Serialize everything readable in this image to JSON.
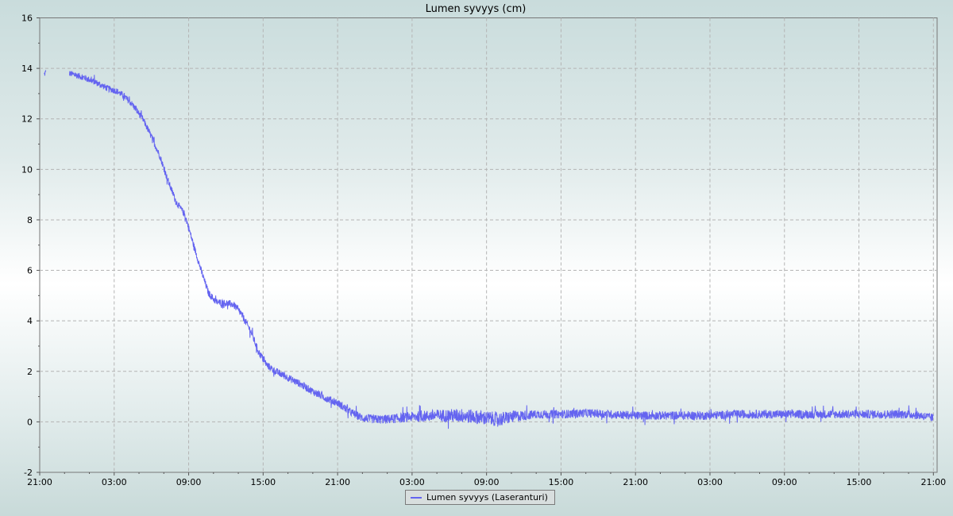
{
  "chart_data": {
    "type": "line",
    "title": "Lumen syvyys (cm)",
    "xlabel": "",
    "ylabel": "",
    "ylim": [
      -2,
      16
    ],
    "y_ticks": [
      -2,
      0,
      2,
      4,
      6,
      8,
      10,
      12,
      14,
      16
    ],
    "x_range_hours": [
      0,
      72.3
    ],
    "x_ticks": [
      {
        "h": 0,
        "label": "21:00"
      },
      {
        "h": 6,
        "label": "03:00"
      },
      {
        "h": 12,
        "label": "09:00"
      },
      {
        "h": 18,
        "label": "15:00"
      },
      {
        "h": 24,
        "label": "21:00"
      },
      {
        "h": 30,
        "label": "03:00"
      },
      {
        "h": 36,
        "label": "09:00"
      },
      {
        "h": 42,
        "label": "15:00"
      },
      {
        "h": 48,
        "label": "21:00"
      },
      {
        "h": 54,
        "label": "03:00"
      },
      {
        "h": 60,
        "label": "09:00"
      },
      {
        "h": 66,
        "label": "15:00"
      },
      {
        "h": 72,
        "label": "21:00"
      }
    ],
    "grid": true,
    "legend_position": "bottom-center",
    "series": [
      {
        "name": "Lumen syvyys (Laseranturi)",
        "color": "#6464f0",
        "segments": [
          [
            [
              0.35,
              13.75
            ],
            [
              0.5,
              13.85
            ]
          ],
          [
            [
              2.4,
              13.8
            ],
            [
              3.5,
              13.65
            ],
            [
              4.5,
              13.45
            ],
            [
              5.5,
              13.2
            ],
            [
              6.2,
              13.1
            ],
            [
              6.8,
              12.9
            ],
            [
              7.5,
              12.55
            ],
            [
              8.3,
              12.0
            ],
            [
              9.0,
              11.3
            ],
            [
              9.7,
              10.5
            ],
            [
              10.3,
              9.6
            ],
            [
              11.0,
              8.7
            ],
            [
              11.7,
              8.2
            ],
            [
              12.4,
              7.0
            ],
            [
              13.0,
              6.0
            ],
            [
              13.6,
              5.1
            ],
            [
              14.2,
              4.75
            ],
            [
              15.0,
              4.7
            ],
            [
              15.6,
              4.65
            ],
            [
              16.2,
              4.3
            ],
            [
              17.0,
              3.6
            ],
            [
              17.6,
              2.8
            ],
            [
              18.3,
              2.25
            ],
            [
              19.0,
              2.0
            ],
            [
              20.0,
              1.75
            ],
            [
              21.0,
              1.5
            ],
            [
              22.0,
              1.2
            ],
            [
              23.0,
              0.95
            ],
            [
              24.0,
              0.75
            ],
            [
              25.0,
              0.4
            ],
            [
              26.0,
              0.15
            ],
            [
              27.0,
              0.1
            ],
            [
              28.0,
              0.1
            ],
            [
              29.0,
              0.15
            ],
            [
              30.0,
              0.2
            ],
            [
              32.0,
              0.25
            ],
            [
              34.0,
              0.25
            ],
            [
              36.0,
              0.15
            ],
            [
              37.0,
              0.1
            ],
            [
              38.0,
              0.2
            ],
            [
              40.0,
              0.3
            ],
            [
              42.0,
              0.3
            ],
            [
              44.0,
              0.35
            ],
            [
              46.0,
              0.3
            ],
            [
              48.0,
              0.25
            ],
            [
              50.0,
              0.25
            ],
            [
              52.0,
              0.25
            ],
            [
              54.0,
              0.25
            ],
            [
              56.0,
              0.3
            ],
            [
              58.0,
              0.3
            ],
            [
              60.0,
              0.3
            ],
            [
              62.0,
              0.3
            ],
            [
              64.0,
              0.3
            ],
            [
              66.0,
              0.3
            ],
            [
              68.0,
              0.3
            ],
            [
              70.0,
              0.3
            ],
            [
              71.0,
              0.25
            ],
            [
              72.0,
              0.15
            ]
          ]
        ],
        "noise_amplitude": [
          [
            0,
            0.12
          ],
          [
            24,
            0.15
          ],
          [
            30,
            0.2
          ],
          [
            34,
            0.28
          ],
          [
            37,
            0.28
          ],
          [
            40,
            0.17
          ],
          [
            72,
            0.17
          ]
        ]
      }
    ]
  }
}
